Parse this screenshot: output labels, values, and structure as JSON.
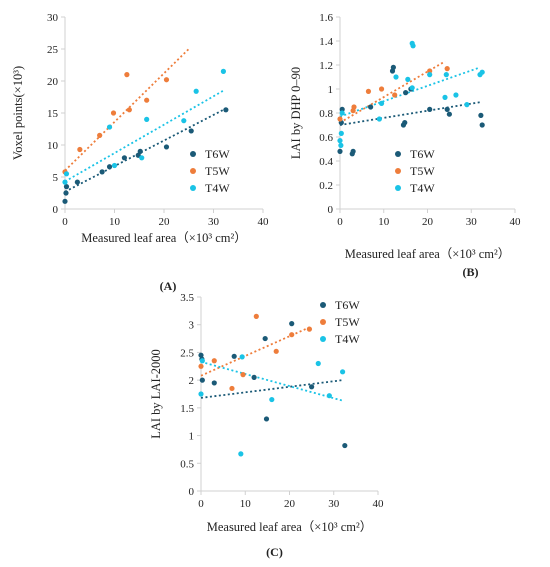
{
  "colors": {
    "T6W": "#1b5a77",
    "T5W": "#ee7d3b",
    "T4W": "#1ac3e6",
    "axis": "#d0d0d0"
  },
  "chart_data": [
    {
      "panel_label": "(A)",
      "type": "scatter",
      "xlabel": "Measured leaf area（×10³ cm²）",
      "ylabel": "Voxel points(×10³)",
      "xlim": [
        0,
        40
      ],
      "ylim": [
        0,
        30
      ],
      "xticks": [
        "0",
        "10",
        "20",
        "30",
        "40"
      ],
      "yticks": [
        "0",
        "5",
        "10",
        "15",
        "20",
        "25",
        "30"
      ],
      "legend_position": "right",
      "grid": false,
      "series": [
        {
          "name": "T6W",
          "color": "#1b5a77",
          "points": [
            [
              0,
              1.2
            ],
            [
              0.2,
              2.5
            ],
            [
              0.3,
              3.5
            ],
            [
              2.5,
              4.2
            ],
            [
              7.5,
              5.8
            ],
            [
              9,
              6.6
            ],
            [
              12,
              8
            ],
            [
              14.8,
              8.4
            ],
            [
              15.2,
              9
            ],
            [
              20.5,
              9.7
            ],
            [
              25.5,
              12.2
            ],
            [
              32.5,
              15.5
            ]
          ],
          "trend": [
            [
              0,
              2.7
            ],
            [
              32,
              15.5
            ]
          ]
        },
        {
          "name": "T5W",
          "color": "#ee7d3b",
          "points": [
            [
              0,
              5.8
            ],
            [
              3,
              9.3
            ],
            [
              7,
              11.5
            ],
            [
              9.8,
              15
            ],
            [
              12.5,
              21
            ],
            [
              13,
              15.5
            ],
            [
              16.5,
              17
            ],
            [
              20.5,
              20.2
            ]
          ],
          "trend": [
            [
              0,
              6
            ],
            [
              25,
              25
            ]
          ]
        },
        {
          "name": "T4W",
          "color": "#1ac3e6",
          "points": [
            [
              0,
              4.2
            ],
            [
              0.3,
              5.5
            ],
            [
              9,
              12.8
            ],
            [
              10,
              6.8
            ],
            [
              15.5,
              8
            ],
            [
              16.5,
              14
            ],
            [
              24,
              13.8
            ],
            [
              26.5,
              18.4
            ],
            [
              32,
              21.5
            ]
          ],
          "trend": [
            [
              0,
              4.3
            ],
            [
              32,
              18.5
            ]
          ]
        }
      ]
    },
    {
      "panel_label": "(B)",
      "type": "scatter",
      "xlabel": "Measured leaf area（×10³ cm²）",
      "ylabel": "LAI by DHP 0–90",
      "xlim": [
        0,
        40
      ],
      "ylim": [
        0,
        1.6
      ],
      "xticks": [
        "0",
        "10",
        "20",
        "30",
        "40"
      ],
      "yticks": [
        "0",
        "0.2",
        "0.4",
        "0.6",
        "0.8",
        "1",
        "1.2",
        "1.4",
        "1.6"
      ],
      "legend_position": "bottom-right",
      "grid": false,
      "series": [
        {
          "name": "T6W",
          "color": "#1b5a77",
          "points": [
            [
              0,
              0.48
            ],
            [
              0.3,
              0.72
            ],
            [
              0.5,
              0.83
            ],
            [
              2.8,
              0.46
            ],
            [
              3,
              0.48
            ],
            [
              7,
              0.85
            ],
            [
              12,
              1.15
            ],
            [
              12.2,
              1.18
            ],
            [
              14.5,
              0.7
            ],
            [
              14.8,
              0.72
            ],
            [
              15,
              0.97
            ],
            [
              16.2,
              1.0
            ],
            [
              20.5,
              0.83
            ],
            [
              24.5,
              0.83
            ],
            [
              25,
              0.79
            ],
            [
              32.2,
              0.78
            ],
            [
              32.5,
              0.7
            ]
          ],
          "trend": [
            [
              0,
              0.7
            ],
            [
              32,
              0.89
            ]
          ]
        },
        {
          "name": "T5W",
          "color": "#ee7d3b",
          "points": [
            [
              0,
              0.75
            ],
            [
              3,
              0.82
            ],
            [
              3.2,
              0.85
            ],
            [
              6.5,
              0.98
            ],
            [
              9.5,
              1.0
            ],
            [
              12.5,
              0.95
            ],
            [
              20.5,
              1.15
            ],
            [
              24.5,
              1.17
            ]
          ],
          "trend": [
            [
              0,
              0.72
            ],
            [
              24,
              1.23
            ]
          ]
        },
        {
          "name": "T4W",
          "color": "#1ac3e6",
          "points": [
            [
              0,
              0.57
            ],
            [
              0.2,
              0.53
            ],
            [
              0.3,
              0.63
            ],
            [
              0.5,
              0.8
            ],
            [
              9,
              0.75
            ],
            [
              9.5,
              0.88
            ],
            [
              12.8,
              1.1
            ],
            [
              15.5,
              1.08
            ],
            [
              16.5,
              1.38
            ],
            [
              16.7,
              1.36
            ],
            [
              16.5,
              1.01
            ],
            [
              20.5,
              1.12
            ],
            [
              24,
              0.93
            ],
            [
              24.3,
              1.12
            ],
            [
              26.5,
              0.95
            ],
            [
              29,
              0.87
            ],
            [
              32,
              1.12
            ],
            [
              32.5,
              1.14
            ]
          ],
          "trend": [
            [
              0,
              0.77
            ],
            [
              32,
              1.18
            ]
          ]
        }
      ]
    },
    {
      "panel_label": "(C)",
      "type": "scatter",
      "xlabel": "Measured leaf area（×10³ cm²）",
      "ylabel": "LAI by LAI-2000",
      "xlim": [
        0,
        40
      ],
      "ylim": [
        0,
        3.5
      ],
      "xticks": [
        "0",
        "10",
        "20",
        "30",
        "40"
      ],
      "yticks": [
        "0",
        "0.5",
        "1",
        "1.5",
        "2",
        "2.5",
        "3",
        "3.5"
      ],
      "legend_position": "top-right",
      "grid": false,
      "series": [
        {
          "name": "T6W",
          "color": "#1b5a77",
          "points": [
            [
              0,
              2.45
            ],
            [
              0.2,
              2.38
            ],
            [
              0.3,
              2.0
            ],
            [
              3,
              1.95
            ],
            [
              7.5,
              2.43
            ],
            [
              12,
              2.05
            ],
            [
              14.5,
              2.75
            ],
            [
              14.8,
              1.3
            ],
            [
              20.5,
              3.02
            ],
            [
              25,
              1.88
            ],
            [
              32.5,
              0.82
            ]
          ],
          "trend": [
            [
              0,
              1.68
            ],
            [
              32,
              2.0
            ]
          ]
        },
        {
          "name": "T5W",
          "color": "#ee7d3b",
          "points": [
            [
              0,
              2.25
            ],
            [
              3,
              2.35
            ],
            [
              7,
              1.85
            ],
            [
              9.5,
              2.1
            ],
            [
              12.5,
              3.15
            ],
            [
              17,
              2.52
            ],
            [
              20.5,
              2.82
            ],
            [
              24.5,
              2.92
            ]
          ],
          "trend": [
            [
              0,
              2.08
            ],
            [
              25,
              2.97
            ]
          ]
        },
        {
          "name": "T4W",
          "color": "#1ac3e6",
          "points": [
            [
              0,
              1.75
            ],
            [
              0.3,
              2.35
            ],
            [
              9,
              0.67
            ],
            [
              9.3,
              2.42
            ],
            [
              16,
              1.65
            ],
            [
              26.5,
              2.3
            ],
            [
              29,
              1.72
            ],
            [
              32,
              2.15
            ]
          ],
          "trend": [
            [
              0,
              2.33
            ],
            [
              32,
              1.63
            ]
          ]
        }
      ]
    }
  ]
}
